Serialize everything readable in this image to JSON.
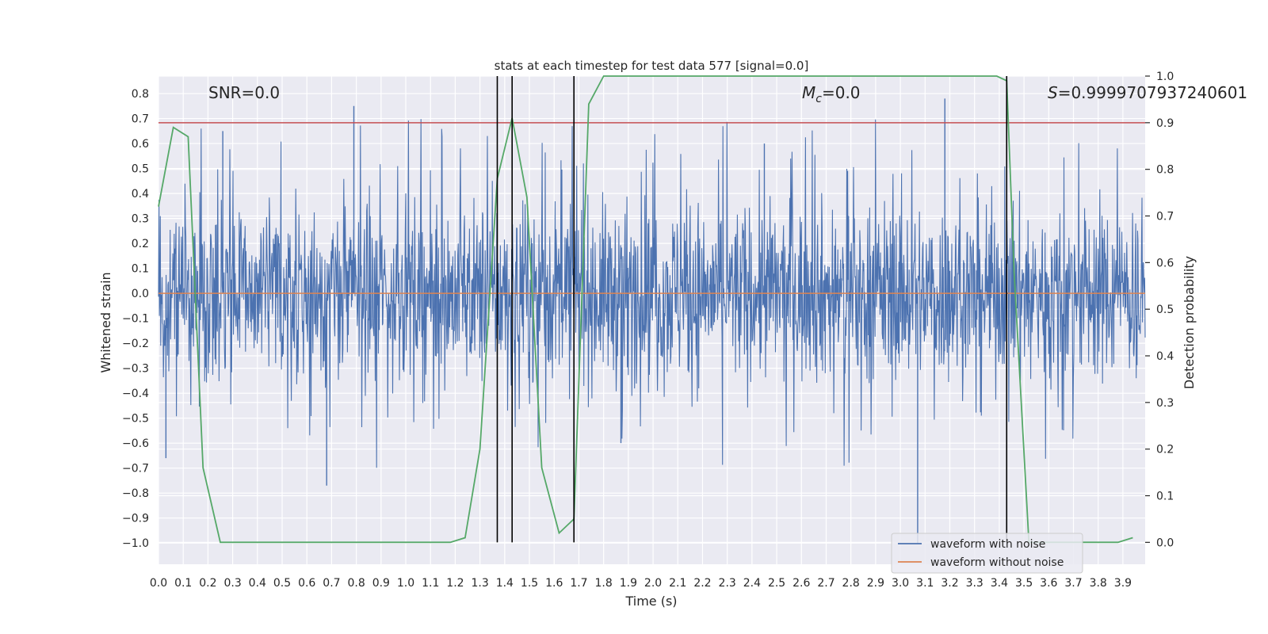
{
  "chart_data": {
    "type": "line",
    "title": "stats at each timestep for test data 577 [signal=0.0]",
    "xlabel": "Time (s)",
    "ylabel": "Whitened strain",
    "y2label": "Detection probability",
    "xlim": [
      0.0,
      3.99
    ],
    "ylim": [
      -1.085,
      0.87
    ],
    "y2lim": [
      -0.047,
      1.0
    ],
    "xticks": [
      0.0,
      0.1,
      0.2,
      0.3,
      0.4,
      0.5,
      0.6,
      0.7,
      0.8,
      0.9,
      1.0,
      1.1,
      1.2,
      1.3,
      1.4,
      1.5,
      1.6,
      1.7,
      1.8,
      1.9,
      2.0,
      2.1,
      2.2,
      2.3,
      2.4,
      2.5,
      2.6,
      2.7,
      2.8,
      2.9,
      3.0,
      3.1,
      3.2,
      3.3,
      3.4,
      3.5,
      3.6,
      3.7,
      3.8,
      3.9
    ],
    "xtick_labels": [
      "0.0",
      "0.1",
      "0.2",
      "0.3",
      "0.4",
      "0.5",
      "0.6",
      "0.7",
      "0.8",
      "0.9",
      "1.0",
      "1.1",
      "1.2",
      "1.3",
      "1.4",
      "1.5",
      "1.6",
      "1.7",
      "1.8",
      "1.9",
      "2.0",
      "2.1",
      "2.2",
      "2.3",
      "2.4",
      "2.5",
      "2.6",
      "2.7",
      "2.8",
      "2.9",
      "3.0",
      "3.1",
      "3.2",
      "3.3",
      "3.4",
      "3.5",
      "3.6",
      "3.7",
      "3.8",
      "3.9"
    ],
    "yticks": [
      0.8,
      0.7,
      0.6,
      0.5,
      0.4,
      0.3,
      0.2,
      0.1,
      0.0,
      -0.1,
      -0.2,
      -0.3,
      -0.4,
      -0.5,
      -0.6,
      -0.7,
      -0.8,
      -0.9,
      -1.0
    ],
    "ytick_labels": [
      "0.8",
      "0.7",
      "0.6",
      "0.5",
      "0.4",
      "0.3",
      "0.2",
      "0.1",
      "0.0",
      "−0.1",
      "−0.2",
      "−0.3",
      "−0.4",
      "−0.5",
      "−0.6",
      "−0.7",
      "−0.8",
      "−0.9",
      "−1.0"
    ],
    "y2ticks": [
      1.0,
      0.9,
      0.8,
      0.7,
      0.6,
      0.5,
      0.4,
      0.3,
      0.2,
      0.1,
      0.0
    ],
    "y2tick_labels": [
      "1.0",
      "0.9",
      "0.8",
      "0.7",
      "0.6",
      "0.5",
      "0.4",
      "0.3",
      "0.2",
      "0.1",
      "0.0"
    ],
    "grid": true,
    "legend_placement": "bottom-right",
    "series": [
      {
        "name": "waveform with noise",
        "color": "#4c72b0",
        "axis": "left",
        "style": "noise",
        "amplitude_typical": 0.35,
        "peak_values": [
          0.65,
          -0.66,
          0.75,
          -0.77,
          0.78,
          -1.0,
          0.6,
          -0.6
        ]
      },
      {
        "name": "waveform without noise",
        "color": "#dd8452",
        "axis": "left",
        "values_constant": 0.0
      },
      {
        "name": "Detection probability",
        "color": "#55a868",
        "axis": "right",
        "legend": false,
        "x": [
          0.0,
          0.06,
          0.12,
          0.18,
          0.25,
          0.31,
          0.37,
          0.43,
          0.49,
          0.55,
          0.61,
          0.68,
          0.74,
          0.8,
          0.86,
          0.92,
          0.98,
          1.04,
          1.1,
          1.18,
          1.24,
          1.3,
          1.37,
          1.43,
          1.49,
          1.55,
          1.62,
          1.68,
          1.74,
          1.8,
          1.86,
          1.92,
          1.98,
          2.04,
          2.1,
          2.17,
          2.23,
          2.29,
          2.35,
          2.41,
          2.47,
          2.53,
          2.59,
          2.66,
          2.72,
          2.78,
          2.84,
          2.9,
          2.96,
          3.02,
          3.08,
          3.15,
          3.21,
          3.27,
          3.33,
          3.39,
          3.43,
          3.46,
          3.52,
          3.58,
          3.64,
          3.7,
          3.76,
          3.82,
          3.88,
          3.94
        ],
        "values": [
          0.72,
          0.89,
          0.87,
          0.16,
          0.0,
          0.0,
          0.0,
          0.0,
          0.0,
          0.0,
          0.0,
          0.0,
          0.0,
          0.0,
          0.0,
          0.0,
          0.0,
          0.0,
          0.0,
          0.0,
          0.01,
          0.2,
          0.78,
          0.91,
          0.74,
          0.16,
          0.02,
          0.05,
          0.94,
          1.0,
          1.0,
          1.0,
          1.0,
          1.0,
          1.0,
          1.0,
          1.0,
          1.0,
          1.0,
          1.0,
          1.0,
          1.0,
          1.0,
          1.0,
          1.0,
          1.0,
          1.0,
          1.0,
          1.0,
          1.0,
          1.0,
          1.0,
          1.0,
          1.0,
          1.0,
          1.0,
          0.99,
          0.58,
          0.0,
          0.0,
          0.0,
          0.0,
          0.0,
          0.0,
          0.0,
          0.01
        ]
      }
    ],
    "threshold_line": {
      "axis": "right",
      "value": 0.9,
      "color": "#c44e52"
    },
    "vertical_lines": [
      {
        "x": 1.37,
        "ymin": 0.0,
        "ymax": 1.0
      },
      {
        "x": 1.43,
        "ymin": 0.0,
        "ymax": 1.0
      },
      {
        "x": 1.68,
        "ymin": 0.0,
        "ymax": 1.0
      },
      {
        "x": 3.43,
        "ymin": 0.0,
        "ymax": 1.0
      }
    ],
    "annotations": {
      "snr_label": "SNR=0.0",
      "mc_symbol": "M",
      "mc_subscript": "c",
      "mc_value": "=0.0",
      "s_symbol": "S",
      "s_value": "=0.9999707937240601"
    },
    "legend": [
      {
        "label": "waveform with noise",
        "color": "#4c72b0"
      },
      {
        "label": "waveform without noise",
        "color": "#dd8452"
      }
    ],
    "colors": {
      "plot_bg": "#eaeaf2",
      "grid": "#ffffff",
      "vline": "#000000"
    }
  }
}
